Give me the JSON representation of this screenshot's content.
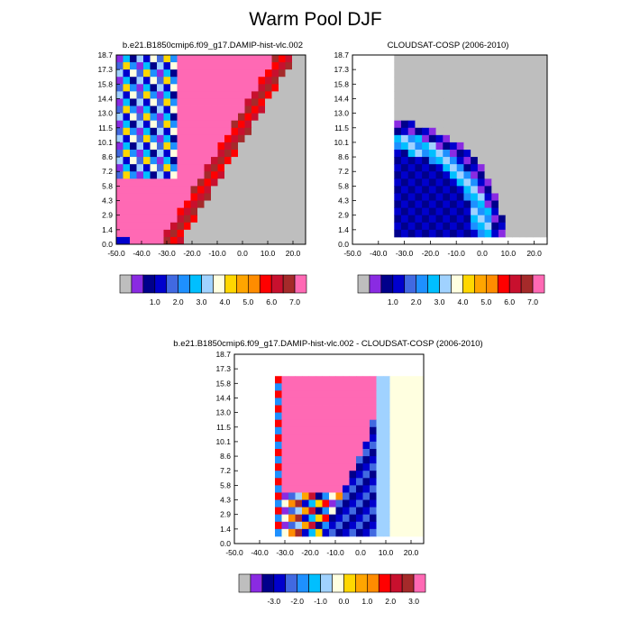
{
  "page_title": "Warm Pool DJF",
  "colors": {
    "gray": "#bebebe",
    "palette": [
      "#bebebe",
      "#8a2be2",
      "#00008b",
      "#0000cd",
      "#4169e1",
      "#1e90ff",
      "#00bfff",
      "#a0d2ff",
      "#ffffe0",
      "#ffd700",
      "#ffa500",
      "#ff8c00",
      "#ff0000",
      "#c8102e",
      "#a52a2a",
      "#ff69b4"
    ]
  },
  "chart_data": [
    {
      "type": "heatmap",
      "title": "b.e21.B1850cmip6.f09_g17.DAMIP-hist-vlc.002",
      "x_ticks": [
        "-50.0",
        "-40.0",
        "-30.0",
        "-20.0",
        "-10.0",
        "0.0",
        "10.0",
        "20.0"
      ],
      "x_tick_values": [
        -50,
        -40,
        -30,
        -20,
        -10,
        0,
        10,
        20
      ],
      "y_ticks": [
        "18.7",
        "17.3",
        "15.8",
        "14.4",
        "13.0",
        "11.5",
        "10.1",
        "8.6",
        "7.2",
        "5.8",
        "4.3",
        "2.9",
        "1.4",
        "0.0"
      ],
      "xlim": [
        -50,
        25
      ],
      "colorbar_labels": [
        "1.0",
        "2.0",
        "3.0",
        "4.0",
        "5.0",
        "6.0",
        "7.0"
      ]
    },
    {
      "type": "heatmap",
      "title": "CLOUDSAT-COSP (2006-2010)",
      "x_ticks": [
        "-50.0",
        "-40.0",
        "-30.0",
        "-20.0",
        "-10.0",
        "0.0",
        "10.0",
        "20.0"
      ],
      "x_tick_values": [
        -50,
        -40,
        -30,
        -20,
        -10,
        0,
        10,
        20
      ],
      "y_ticks": [
        "18.7",
        "17.3",
        "15.8",
        "14.4",
        "13.0",
        "11.5",
        "10.1",
        "8.6",
        "7.2",
        "5.8",
        "4.3",
        "2.9",
        "1.4",
        "0.0"
      ],
      "xlim": [
        -50,
        25
      ],
      "colorbar_labels": [
        "1.0",
        "2.0",
        "3.0",
        "4.0",
        "5.0",
        "6.0",
        "7.0"
      ]
    },
    {
      "type": "heatmap",
      "title": "b.e21.B1850cmip6.f09_g17.DAMIP-hist-vlc.002 - CLOUDSAT-COSP (2006-2010)",
      "x_ticks": [
        "-50.0",
        "-40.0",
        "-30.0",
        "-20.0",
        "-10.0",
        "0.0",
        "10.0",
        "20.0"
      ],
      "x_tick_values": [
        -50,
        -40,
        -30,
        -20,
        -10,
        0,
        10,
        20
      ],
      "y_ticks": [
        "18.7",
        "17.3",
        "15.8",
        "14.4",
        "13.0",
        "11.5",
        "10.1",
        "8.6",
        "7.2",
        "5.8",
        "4.3",
        "2.9",
        "1.4",
        "0.0"
      ],
      "xlim": [
        -50,
        25
      ],
      "colorbar_labels": [
        "-3.0",
        "-2.0",
        "-1.0",
        "0.0",
        "1.0",
        "2.0",
        "3.0"
      ]
    }
  ]
}
